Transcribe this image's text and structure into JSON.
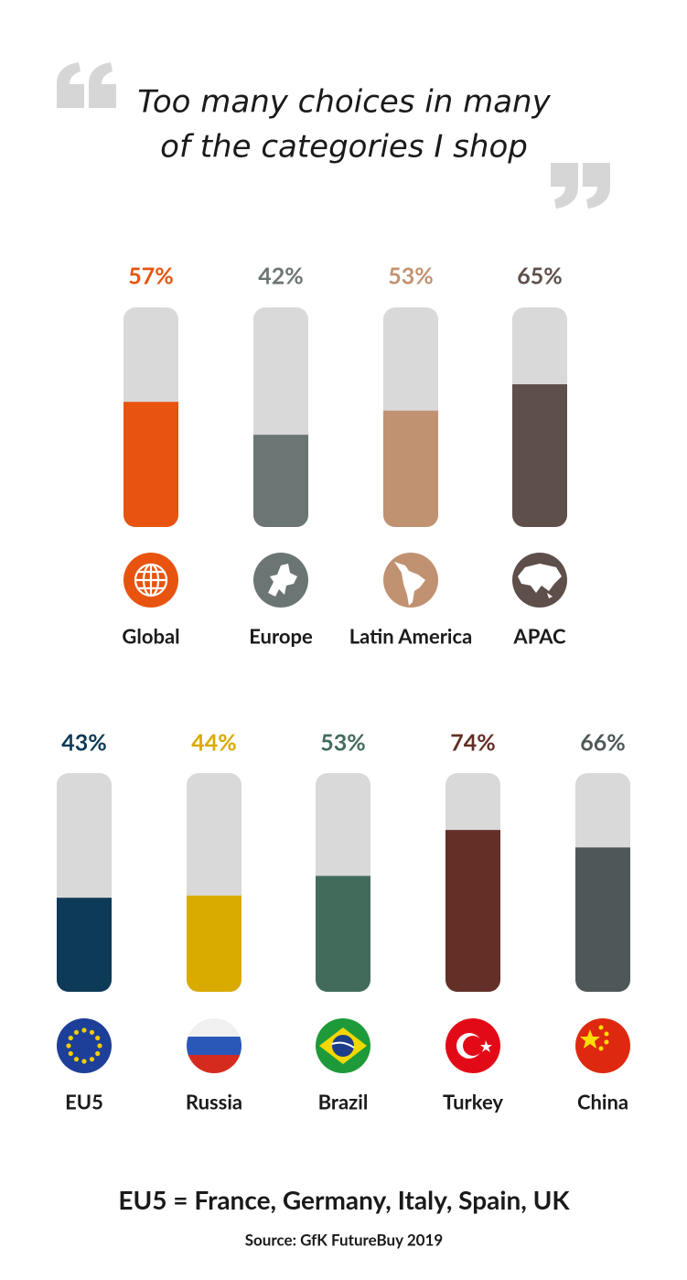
{
  "quote": {
    "lines": [
      "Too many choices in many",
      "of the categories I shop"
    ]
  },
  "chart_data": [
    {
      "type": "bar",
      "categories": [
        "Global",
        "Europe",
        "Latin America",
        "APAC"
      ],
      "values": [
        57,
        42,
        53,
        65
      ],
      "value_labels": [
        "57%",
        "42%",
        "53%",
        "65%"
      ],
      "colors": [
        "#e8540f",
        "#6b7574",
        "#c09272",
        "#5f4f4b"
      ],
      "track_color": "#d9d9d9",
      "ylim": [
        0,
        100
      ]
    },
    {
      "type": "bar",
      "categories": [
        "EU5",
        "Russia",
        "Brazil",
        "Turkey",
        "China"
      ],
      "values": [
        43,
        44,
        53,
        74,
        66
      ],
      "value_labels": [
        "43%",
        "44%",
        "53%",
        "74%",
        "66%"
      ],
      "colors": [
        "#0d3a57",
        "#d9aa00",
        "#436b5c",
        "#632f26",
        "#4f5859"
      ],
      "track_color": "#d9d9d9",
      "ylim": [
        0,
        100
      ]
    }
  ],
  "footnote": "EU5 = France, Germany, Italy, Spain, UK",
  "source": "Source: GfK FutureBuy 2019"
}
